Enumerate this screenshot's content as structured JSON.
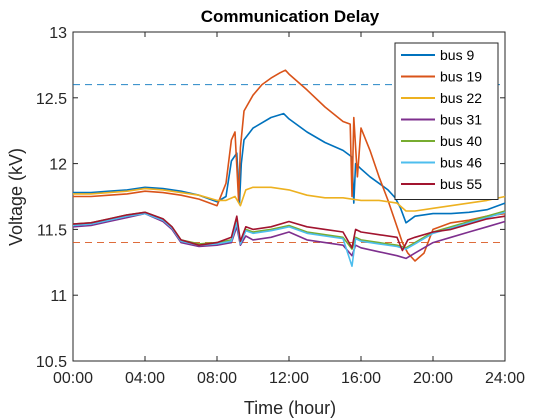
{
  "chart_data": {
    "type": "line",
    "title": "Communication Delay",
    "xlabel": "Time (hour)",
    "ylabel": "Voltage (kV)",
    "xlim": [
      0,
      24
    ],
    "ylim": [
      10.5,
      13
    ],
    "xticks": [
      0,
      4,
      8,
      12,
      16,
      20,
      24
    ],
    "xtick_labels": [
      "00:00",
      "04:00",
      "08:00",
      "12:00",
      "16:00",
      "20:00",
      "24:00"
    ],
    "yticks": [
      10.5,
      11,
      11.5,
      12,
      12.5,
      13
    ],
    "ytick_labels": [
      "10.5",
      "11",
      "11.5",
      "12",
      "12.5",
      "13"
    ],
    "grid": false,
    "legend_position": "top-right",
    "reference_lines": [
      {
        "y": 12.6,
        "color": "#0072BD",
        "style": "dashed"
      },
      {
        "y": 11.4,
        "color": "#D95319",
        "style": "dashed"
      }
    ],
    "series": [
      {
        "name": "bus 9",
        "color": "#0072BD",
        "points": [
          [
            0,
            11.78
          ],
          [
            1,
            11.78
          ],
          [
            2,
            11.79
          ],
          [
            3,
            11.8
          ],
          [
            4,
            11.82
          ],
          [
            5,
            11.81
          ],
          [
            6,
            11.79
          ],
          [
            7,
            11.76
          ],
          [
            8,
            11.71
          ],
          [
            8.5,
            11.75
          ],
          [
            8.8,
            12.02
          ],
          [
            9.1,
            12.08
          ],
          [
            9.25,
            11.7
          ],
          [
            9.35,
            12.0
          ],
          [
            9.5,
            12.18
          ],
          [
            10,
            12.27
          ],
          [
            11,
            12.35
          ],
          [
            11.7,
            12.38
          ],
          [
            12,
            12.34
          ],
          [
            13,
            12.24
          ],
          [
            14,
            12.16
          ],
          [
            15,
            12.1
          ],
          [
            15.5,
            12.05
          ],
          [
            15.6,
            11.7
          ],
          [
            15.7,
            12.0
          ],
          [
            16,
            11.96
          ],
          [
            16.5,
            11.9
          ],
          [
            17,
            11.85
          ],
          [
            17.5,
            11.8
          ],
          [
            17.9,
            11.74
          ],
          [
            18.2,
            11.66
          ],
          [
            18.5,
            11.55
          ],
          [
            19,
            11.6
          ],
          [
            20,
            11.62
          ],
          [
            21,
            11.62
          ],
          [
            22,
            11.63
          ],
          [
            23,
            11.65
          ],
          [
            24,
            11.7
          ]
        ]
      },
      {
        "name": "bus 19",
        "color": "#D95319",
        "points": [
          [
            0,
            11.75
          ],
          [
            1,
            11.75
          ],
          [
            2,
            11.76
          ],
          [
            3,
            11.77
          ],
          [
            4,
            11.79
          ],
          [
            5,
            11.78
          ],
          [
            6,
            11.76
          ],
          [
            7,
            11.73
          ],
          [
            8,
            11.68
          ],
          [
            8.5,
            11.85
          ],
          [
            8.8,
            12.18
          ],
          [
            9.0,
            12.24
          ],
          [
            9.2,
            11.72
          ],
          [
            9.3,
            12.12
          ],
          [
            9.5,
            12.4
          ],
          [
            10,
            12.52
          ],
          [
            10.5,
            12.6
          ],
          [
            11,
            12.65
          ],
          [
            11.5,
            12.69
          ],
          [
            11.8,
            12.71
          ],
          [
            12,
            12.68
          ],
          [
            13,
            12.56
          ],
          [
            14,
            12.43
          ],
          [
            15,
            12.32
          ],
          [
            15.4,
            12.3
          ],
          [
            15.5,
            11.75
          ],
          [
            15.6,
            12.35
          ],
          [
            15.8,
            11.9
          ],
          [
            16,
            12.27
          ],
          [
            16.5,
            12.1
          ],
          [
            17,
            11.9
          ],
          [
            17.5,
            11.72
          ],
          [
            18,
            11.52
          ],
          [
            18.3,
            11.4
          ],
          [
            18.6,
            11.32
          ],
          [
            19,
            11.26
          ],
          [
            19.5,
            11.32
          ],
          [
            20,
            11.5
          ],
          [
            21,
            11.55
          ],
          [
            22,
            11.57
          ],
          [
            23,
            11.6
          ],
          [
            24,
            11.62
          ]
        ]
      },
      {
        "name": "bus 22",
        "color": "#EDB120",
        "points": [
          [
            0,
            11.77
          ],
          [
            1,
            11.77
          ],
          [
            2,
            11.78
          ],
          [
            3,
            11.79
          ],
          [
            4,
            11.81
          ],
          [
            5,
            11.8
          ],
          [
            6,
            11.78
          ],
          [
            7,
            11.76
          ],
          [
            8,
            11.72
          ],
          [
            8.5,
            11.72
          ],
          [
            9,
            11.75
          ],
          [
            9.3,
            11.68
          ],
          [
            9.6,
            11.8
          ],
          [
            10,
            11.82
          ],
          [
            11,
            11.82
          ],
          [
            12,
            11.8
          ],
          [
            13,
            11.76
          ],
          [
            14,
            11.74
          ],
          [
            15,
            11.74
          ],
          [
            16,
            11.72
          ],
          [
            17,
            11.72
          ],
          [
            18,
            11.7
          ],
          [
            18.5,
            11.64
          ],
          [
            19,
            11.64
          ],
          [
            20,
            11.66
          ],
          [
            21,
            11.68
          ],
          [
            22,
            11.7
          ],
          [
            23,
            11.72
          ],
          [
            24,
            11.75
          ]
        ]
      },
      {
        "name": "bus 31",
        "color": "#7E2F8E",
        "points": [
          [
            0,
            11.52
          ],
          [
            1,
            11.53
          ],
          [
            2,
            11.56
          ],
          [
            3,
            11.59
          ],
          [
            4,
            11.62
          ],
          [
            5,
            11.56
          ],
          [
            5.5,
            11.5
          ],
          [
            6,
            11.4
          ],
          [
            7,
            11.37
          ],
          [
            8,
            11.38
          ],
          [
            8.8,
            11.4
          ],
          [
            9.1,
            11.52
          ],
          [
            9.3,
            11.38
          ],
          [
            9.6,
            11.45
          ],
          [
            10,
            11.42
          ],
          [
            11,
            11.44
          ],
          [
            12,
            11.48
          ],
          [
            13,
            11.42
          ],
          [
            14,
            11.4
          ],
          [
            15,
            11.38
          ],
          [
            15.5,
            11.3
          ],
          [
            15.7,
            11.38
          ],
          [
            16,
            11.36
          ],
          [
            17,
            11.33
          ],
          [
            18,
            11.3
          ],
          [
            18.5,
            11.28
          ],
          [
            19,
            11.32
          ],
          [
            20,
            11.4
          ],
          [
            21,
            11.44
          ],
          [
            22,
            11.48
          ],
          [
            23,
            11.52
          ],
          [
            24,
            11.56
          ]
        ]
      },
      {
        "name": "bus 40",
        "color": "#77AC30",
        "points": [
          [
            0,
            11.54
          ],
          [
            1,
            11.55
          ],
          [
            2,
            11.58
          ],
          [
            3,
            11.61
          ],
          [
            4,
            11.63
          ],
          [
            5,
            11.58
          ],
          [
            5.5,
            11.52
          ],
          [
            6,
            11.42
          ],
          [
            7,
            11.39
          ],
          [
            8,
            11.4
          ],
          [
            8.8,
            11.42
          ],
          [
            9.1,
            11.56
          ],
          [
            9.3,
            11.4
          ],
          [
            9.6,
            11.5
          ],
          [
            10,
            11.48
          ],
          [
            11,
            11.5
          ],
          [
            12,
            11.53
          ],
          [
            13,
            11.48
          ],
          [
            14,
            11.46
          ],
          [
            15,
            11.44
          ],
          [
            15.5,
            11.35
          ],
          [
            15.7,
            11.44
          ],
          [
            16,
            11.42
          ],
          [
            17,
            11.4
          ],
          [
            18,
            11.38
          ],
          [
            18.5,
            11.36
          ],
          [
            19,
            11.4
          ],
          [
            20,
            11.48
          ],
          [
            21,
            11.52
          ],
          [
            22,
            11.56
          ],
          [
            23,
            11.6
          ],
          [
            24,
            11.64
          ]
        ]
      },
      {
        "name": "bus 46",
        "color": "#4DBEEE",
        "points": [
          [
            0,
            11.53
          ],
          [
            1,
            11.54
          ],
          [
            2,
            11.57
          ],
          [
            3,
            11.6
          ],
          [
            4,
            11.62
          ],
          [
            5,
            11.57
          ],
          [
            5.5,
            11.51
          ],
          [
            6,
            11.41
          ],
          [
            7,
            11.38
          ],
          [
            8,
            11.39
          ],
          [
            8.8,
            11.41
          ],
          [
            9.1,
            11.55
          ],
          [
            9.3,
            11.39
          ],
          [
            9.6,
            11.49
          ],
          [
            10,
            11.47
          ],
          [
            11,
            11.49
          ],
          [
            12,
            11.52
          ],
          [
            13,
            11.47
          ],
          [
            14,
            11.45
          ],
          [
            15,
            11.43
          ],
          [
            15.5,
            11.22
          ],
          [
            15.7,
            11.43
          ],
          [
            16,
            11.41
          ],
          [
            17,
            11.39
          ],
          [
            18,
            11.37
          ],
          [
            18.5,
            11.35
          ],
          [
            19,
            11.39
          ],
          [
            20,
            11.47
          ],
          [
            21,
            11.51
          ],
          [
            22,
            11.55
          ],
          [
            23,
            11.59
          ],
          [
            24,
            11.63
          ]
        ]
      },
      {
        "name": "bus 55",
        "color": "#A2142F",
        "points": [
          [
            0,
            11.54
          ],
          [
            1,
            11.55
          ],
          [
            2,
            11.58
          ],
          [
            3,
            11.61
          ],
          [
            4,
            11.63
          ],
          [
            5,
            11.58
          ],
          [
            5.5,
            11.52
          ],
          [
            6,
            11.42
          ],
          [
            7,
            11.38
          ],
          [
            8,
            11.4
          ],
          [
            8.8,
            11.44
          ],
          [
            9.1,
            11.6
          ],
          [
            9.3,
            11.41
          ],
          [
            9.6,
            11.52
          ],
          [
            10,
            11.5
          ],
          [
            11,
            11.52
          ],
          [
            12,
            11.56
          ],
          [
            13,
            11.52
          ],
          [
            14,
            11.5
          ],
          [
            15,
            11.48
          ],
          [
            15.5,
            11.36
          ],
          [
            15.7,
            11.5
          ],
          [
            16,
            11.48
          ],
          [
            17,
            11.46
          ],
          [
            18,
            11.44
          ],
          [
            18.3,
            11.34
          ],
          [
            18.6,
            11.42
          ],
          [
            19,
            11.44
          ],
          [
            20,
            11.48
          ],
          [
            21,
            11.5
          ],
          [
            22,
            11.54
          ],
          [
            23,
            11.58
          ],
          [
            24,
            11.6
          ]
        ]
      }
    ]
  }
}
